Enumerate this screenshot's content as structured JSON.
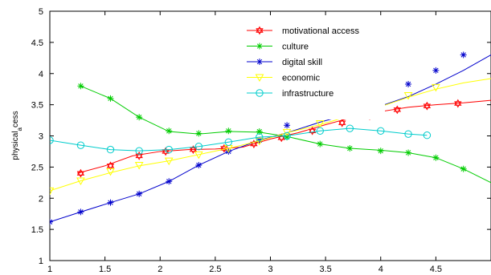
{
  "chart_data": {
    "type": "line",
    "title": "",
    "xlabel": "",
    "ylabel": "physical",
    "ylabel_sub": "a",
    "ylabel_suffix": "cess",
    "xlim": [
      1,
      5
    ],
    "ylim": [
      1,
      5
    ],
    "xticks": [
      1,
      1.5,
      2,
      2.5,
      3,
      3.5,
      4,
      4.5
    ],
    "xtick_labels": [
      "1",
      "1.5",
      "2",
      "2.5",
      "3",
      "3.5",
      "4",
      "4.5"
    ],
    "yticks": [
      1,
      1.5,
      2,
      2.5,
      3,
      3.5,
      4,
      4.5,
      5
    ],
    "ytick_labels": [
      "1",
      "1.5",
      "2",
      "2.5",
      "3",
      "3.5",
      "4",
      "4.5",
      "5"
    ],
    "grid": false,
    "legend_position": "top-right",
    "series": [
      {
        "name": "motivational access",
        "color": "#ff0000",
        "marker": "hexagram",
        "line_x": [
          1.25,
          1.5,
          1.75,
          2.0,
          2.25,
          2.5,
          2.75,
          3.0,
          3.25,
          3.5,
          3.75,
          4.0,
          4.25,
          4.5,
          4.75,
          5.0
        ],
        "line_y": [
          2.4,
          2.52,
          2.68,
          2.75,
          2.78,
          2.79,
          2.82,
          2.95,
          3.05,
          3.18,
          3.3,
          3.39,
          3.46,
          3.5,
          3.53,
          3.57
        ],
        "marker_x": [
          1.28,
          1.55,
          1.81,
          2.05,
          2.3,
          2.58,
          2.85,
          3.1,
          3.38,
          3.65,
          3.9,
          4.15,
          4.42,
          4.7
        ],
        "marker_y": [
          2.4,
          2.52,
          2.68,
          2.75,
          2.78,
          2.8,
          2.87,
          2.97,
          3.08,
          3.21,
          3.32,
          3.42,
          3.48,
          3.52
        ]
      },
      {
        "name": "culture",
        "color": "#00cc00",
        "marker": "asterisk",
        "line_x": [
          1.28,
          1.55,
          1.81,
          2.08,
          2.35,
          2.62,
          2.9,
          3.15,
          3.45,
          3.72,
          4.0,
          4.25,
          4.5,
          4.75,
          5.0
        ],
        "line_y": [
          3.8,
          3.6,
          3.3,
          3.07,
          3.03,
          3.07,
          3.06,
          2.99,
          2.87,
          2.8,
          2.77,
          2.73,
          2.65,
          2.47,
          2.25
        ],
        "marker_x": [
          1.28,
          1.55,
          1.81,
          2.08,
          2.35,
          2.62,
          2.9,
          3.15,
          3.45,
          3.72,
          4.0,
          4.25,
          4.5,
          4.75
        ],
        "marker_y": [
          3.8,
          3.6,
          3.3,
          3.08,
          3.04,
          3.08,
          3.07,
          2.98,
          2.87,
          2.8,
          2.76,
          2.73,
          2.65,
          2.47
        ]
      },
      {
        "name": "digital skill",
        "color": "#0000cc",
        "marker": "asterisk",
        "line_x": [
          1.0,
          1.28,
          1.55,
          1.81,
          2.08,
          2.35,
          2.62,
          2.9,
          3.15,
          3.45,
          3.72,
          4.0,
          4.25,
          4.5,
          4.75,
          5.0
        ],
        "line_y": [
          1.62,
          1.78,
          1.93,
          2.07,
          2.27,
          2.53,
          2.75,
          2.93,
          3.05,
          3.22,
          3.35,
          3.48,
          3.63,
          3.83,
          4.05,
          4.3
        ],
        "marker_x": [
          1.0,
          1.28,
          1.55,
          1.81,
          2.08,
          2.35,
          2.62,
          2.9,
          3.15,
          3.45,
          3.72,
          4.0,
          4.25,
          4.5,
          4.75
        ],
        "marker_y": [
          1.62,
          1.78,
          1.93,
          2.07,
          2.27,
          2.53,
          2.75,
          2.93,
          3.17,
          3.32,
          3.48,
          3.63,
          3.83,
          4.05,
          4.3
        ]
      },
      {
        "name": "economic",
        "color": "#ffff00",
        "marker": "triangle-down",
        "line_x": [
          1.0,
          1.28,
          1.55,
          1.81,
          2.08,
          2.35,
          2.62,
          2.9,
          3.15,
          3.45,
          3.72,
          4.0,
          4.25,
          4.5,
          4.75,
          5.0
        ],
        "line_y": [
          2.12,
          2.28,
          2.41,
          2.52,
          2.6,
          2.7,
          2.8,
          2.92,
          3.05,
          3.18,
          3.32,
          3.47,
          3.62,
          3.75,
          3.85,
          3.92
        ],
        "marker_x": [
          1.0,
          1.28,
          1.55,
          1.81,
          2.08,
          2.35,
          2.62,
          2.9,
          3.15,
          3.45,
          3.72,
          4.0,
          4.25,
          4.5
        ],
        "marker_y": [
          2.12,
          2.28,
          2.43,
          2.53,
          2.6,
          2.7,
          2.8,
          2.92,
          3.06,
          3.2,
          3.36,
          3.5,
          3.65,
          3.78
        ]
      },
      {
        "name": "infrastructure",
        "color": "#00cccc",
        "marker": "circle",
        "line_x": [
          1.0,
          1.28,
          1.55,
          1.81,
          2.08,
          2.35,
          2.62,
          2.9,
          3.15,
          3.45,
          3.72,
          4.0,
          4.25,
          4.42
        ],
        "line_y": [
          2.93,
          2.85,
          2.78,
          2.76,
          2.78,
          2.83,
          2.9,
          2.98,
          3.0,
          3.08,
          3.12,
          3.08,
          3.03,
          3.01
        ],
        "marker_x": [
          1.0,
          1.28,
          1.55,
          1.81,
          2.08,
          2.35,
          2.62,
          2.9,
          3.15,
          3.45,
          3.72,
          4.0,
          4.25,
          4.42
        ],
        "marker_y": [
          2.93,
          2.85,
          2.78,
          2.76,
          2.78,
          2.83,
          2.9,
          2.98,
          3.0,
          3.08,
          3.12,
          3.08,
          3.03,
          3.01
        ]
      }
    ]
  }
}
